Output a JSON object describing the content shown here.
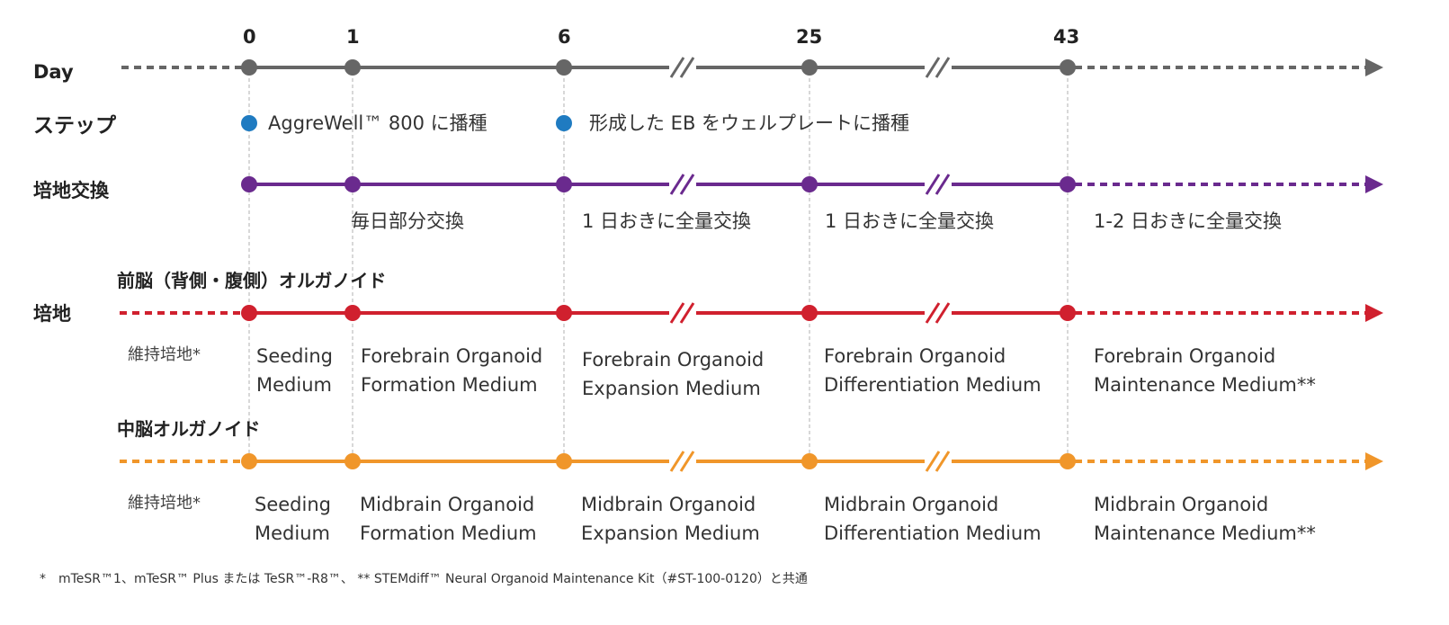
{
  "days": [
    "0",
    "1",
    "6",
    "25",
    "43"
  ],
  "row_labels": {
    "day": "Day",
    "step": "ステップ",
    "medium_change": "培地交換",
    "medium": "培地"
  },
  "steps": [
    {
      "text": "AggreWell™ 800 に播種"
    },
    {
      "text": "形成した EB をウェルプレートに播種"
    }
  ],
  "medium_change_texts": [
    "毎日部分交換",
    "1 日おきに全量交換",
    "1 日おきに全量交換",
    "1-2 日おきに全量交換"
  ],
  "forebrain": {
    "title": "前脳（背側・腹側）オルガノイド",
    "maint_label": "維持培地*",
    "media": [
      "Seeding\nMedium",
      "Forebrain Organoid\nFormation Medium",
      "Forebrain Organoid\nExpansion Medium",
      "Forebrain Organoid\nDifferentiation Medium",
      "Forebrain Organoid\nMaintenance Medium**"
    ]
  },
  "midbrain": {
    "title": "中脳オルガノイド",
    "maint_label": "維持培地*",
    "media": [
      "Seeding\nMedium",
      "Midbrain Organoid\nFormation Medium",
      "Midbrain Organoid\nExpansion Medium",
      "Midbrain Organoid\nDifferentiation Medium",
      "Midbrain Organoid\nMaintenance Medium**"
    ]
  },
  "footnote": "*　mTeSR™1、mTeSR™ Plus または TeSR™-R8™、 ** STEMdiff™ Neural Organoid Maintenance Kit（#ST-100-0120）と共通",
  "colors": {
    "gray": "#666666",
    "blue": "#1f7bc1",
    "purple": "#6a2a8e",
    "red": "#d0202e",
    "orange": "#f0962a",
    "guide": "#b0b0b0"
  }
}
